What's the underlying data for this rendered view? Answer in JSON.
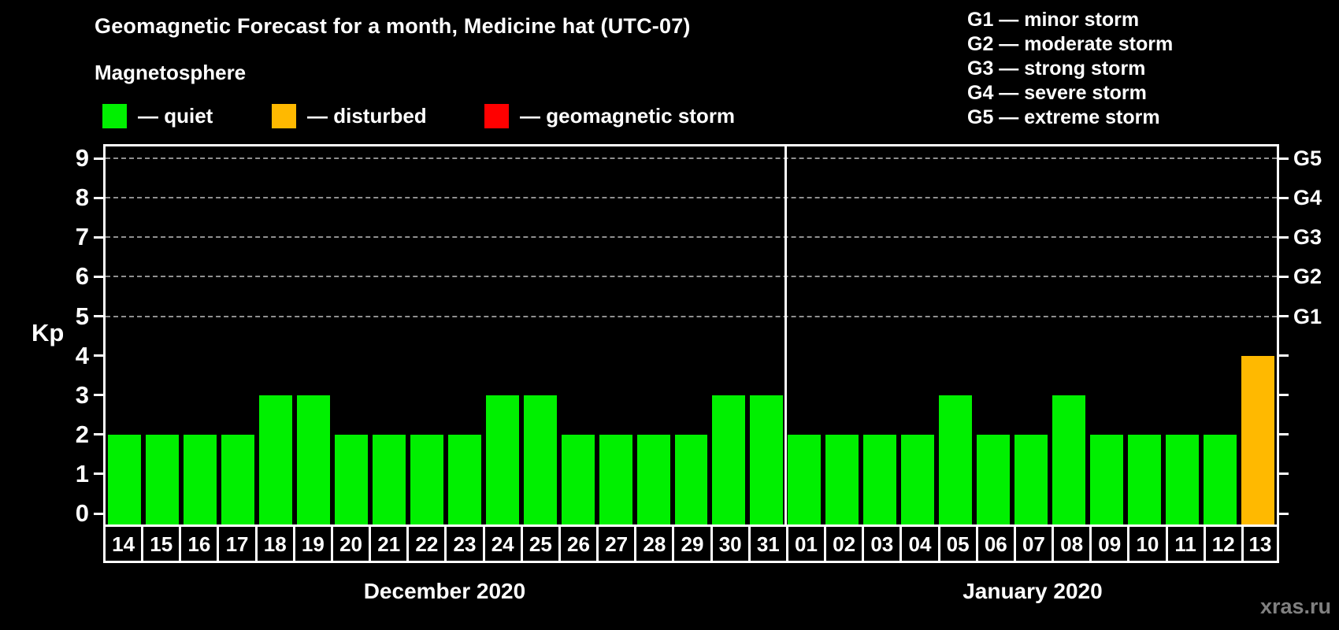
{
  "title": "Geomagnetic Forecast for a month, Medicine hat (UTC-07)",
  "legend_title": "Magnetosphere",
  "legend_items": [
    {
      "name": "quiet",
      "label": "— quiet",
      "color_key": "quiet"
    },
    {
      "name": "disturbed",
      "label": "— disturbed",
      "color_key": "disturbed"
    },
    {
      "name": "storm",
      "label": "— geomagnetic storm",
      "color_key": "storm"
    }
  ],
  "g_legend": [
    "G1 — minor storm",
    "G2 — moderate storm",
    "G3 — strong storm",
    "G4 — severe storm",
    "G5 — extreme storm"
  ],
  "y_axis_label": "Kp",
  "y_ticks": [
    0,
    1,
    2,
    3,
    4,
    5,
    6,
    7,
    8,
    9
  ],
  "right_axis_labels": [
    {
      "kp": 5,
      "label": "G1"
    },
    {
      "kp": 6,
      "label": "G2"
    },
    {
      "kp": 7,
      "label": "G3"
    },
    {
      "kp": 8,
      "label": "G4"
    },
    {
      "kp": 9,
      "label": "G5"
    }
  ],
  "watermark": "xras.ru",
  "colors": {
    "background": "#000000",
    "text": "#ffffff",
    "grid": "#909090",
    "quiet": "#00f000",
    "disturbed": "#ffb900",
    "storm": "#ff0000",
    "watermark": "#808080"
  },
  "chart_data": {
    "type": "bar",
    "title": "Geomagnetic Forecast for a month, Medicine hat (UTC-07)",
    "ylabel": "Kp",
    "ylim": [
      0,
      9
    ],
    "grid": "dashed horizontal at Kp 5-9",
    "gridlines_at": [
      5,
      6,
      7,
      8,
      9
    ],
    "legend_position": "top",
    "months": [
      {
        "label": "December 2020",
        "bars": [
          {
            "day": "14",
            "kp": 2,
            "status": "quiet"
          },
          {
            "day": "15",
            "kp": 2,
            "status": "quiet"
          },
          {
            "day": "16",
            "kp": 2,
            "status": "quiet"
          },
          {
            "day": "17",
            "kp": 2,
            "status": "quiet"
          },
          {
            "day": "18",
            "kp": 3,
            "status": "quiet"
          },
          {
            "day": "19",
            "kp": 3,
            "status": "quiet"
          },
          {
            "day": "20",
            "kp": 2,
            "status": "quiet"
          },
          {
            "day": "21",
            "kp": 2,
            "status": "quiet"
          },
          {
            "day": "22",
            "kp": 2,
            "status": "quiet"
          },
          {
            "day": "23",
            "kp": 2,
            "status": "quiet"
          },
          {
            "day": "24",
            "kp": 3,
            "status": "quiet"
          },
          {
            "day": "25",
            "kp": 3,
            "status": "quiet"
          },
          {
            "day": "26",
            "kp": 2,
            "status": "quiet"
          },
          {
            "day": "27",
            "kp": 2,
            "status": "quiet"
          },
          {
            "day": "28",
            "kp": 2,
            "status": "quiet"
          },
          {
            "day": "29",
            "kp": 2,
            "status": "quiet"
          },
          {
            "day": "30",
            "kp": 3,
            "status": "quiet"
          },
          {
            "day": "31",
            "kp": 3,
            "status": "quiet"
          }
        ]
      },
      {
        "label": "January 2020",
        "bars": [
          {
            "day": "01",
            "kp": 2,
            "status": "quiet"
          },
          {
            "day": "02",
            "kp": 2,
            "status": "quiet"
          },
          {
            "day": "03",
            "kp": 2,
            "status": "quiet"
          },
          {
            "day": "04",
            "kp": 2,
            "status": "quiet"
          },
          {
            "day": "05",
            "kp": 3,
            "status": "quiet"
          },
          {
            "day": "06",
            "kp": 2,
            "status": "quiet"
          },
          {
            "day": "07",
            "kp": 2,
            "status": "quiet"
          },
          {
            "day": "08",
            "kp": 3,
            "status": "quiet"
          },
          {
            "day": "09",
            "kp": 2,
            "status": "quiet"
          },
          {
            "day": "10",
            "kp": 2,
            "status": "quiet"
          },
          {
            "day": "11",
            "kp": 2,
            "status": "quiet"
          },
          {
            "day": "12",
            "kp": 2,
            "status": "quiet"
          },
          {
            "day": "13",
            "kp": 4,
            "status": "disturbed"
          }
        ]
      }
    ]
  }
}
